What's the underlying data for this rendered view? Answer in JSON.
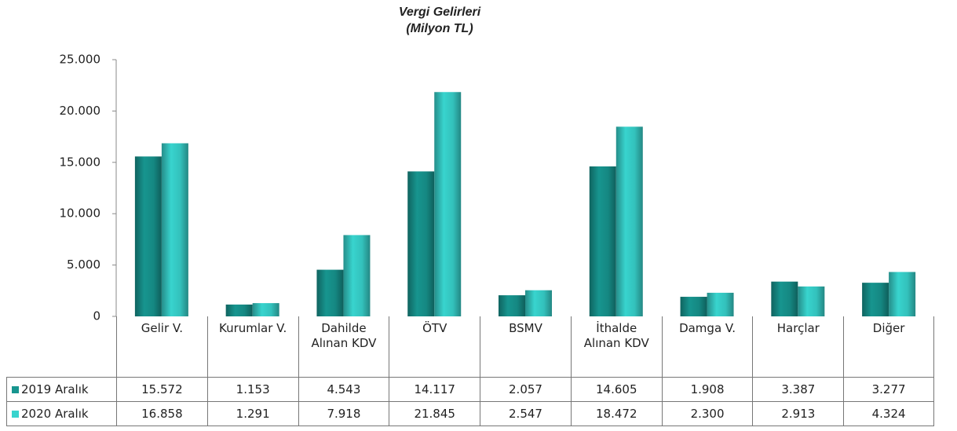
{
  "chart_data": {
    "type": "bar",
    "title": "Vergi Gelirleri",
    "subtitle": "(Milyon TL)",
    "categories": [
      "Gelir V.",
      "Kurumlar V.",
      "Dahilde Alınan KDV",
      "ÖTV",
      "BSMV",
      "İthalde Alınan KDV",
      "Damga V.",
      "Harçlar",
      "Diğer"
    ],
    "series": [
      {
        "name": "2019  Aralık",
        "color": "#17958f",
        "values": [
          15572,
          1153,
          4543,
          14117,
          2057,
          14605,
          1908,
          3387,
          3277
        ],
        "value_labels": [
          "15.572",
          "1.153",
          "4.543",
          "14.117",
          "2.057",
          "14.605",
          "1.908",
          "3.387",
          "3.277"
        ]
      },
      {
        "name": "2020  Aralık",
        "color": "#38d4ce",
        "values": [
          16858,
          1291,
          7918,
          21845,
          2547,
          18472,
          2300,
          2913,
          4324
        ],
        "value_labels": [
          "16.858",
          "1.291",
          "7.918",
          "21.845",
          "2.547",
          "18.472",
          "2.300",
          "2.913",
          "4.324"
        ]
      }
    ],
    "ylim": [
      0,
      25000
    ],
    "yticks": [
      0,
      {
        "value": 5000,
        "label": "5.000"
      },
      {
        "value": 10000,
        "label": "10.000"
      },
      {
        "value": 15000,
        "label": "15.000"
      },
      {
        "value": 20000,
        "label": "20.000"
      },
      {
        "value": 25000,
        "label": "25.000"
      }
    ],
    "grid": false
  }
}
